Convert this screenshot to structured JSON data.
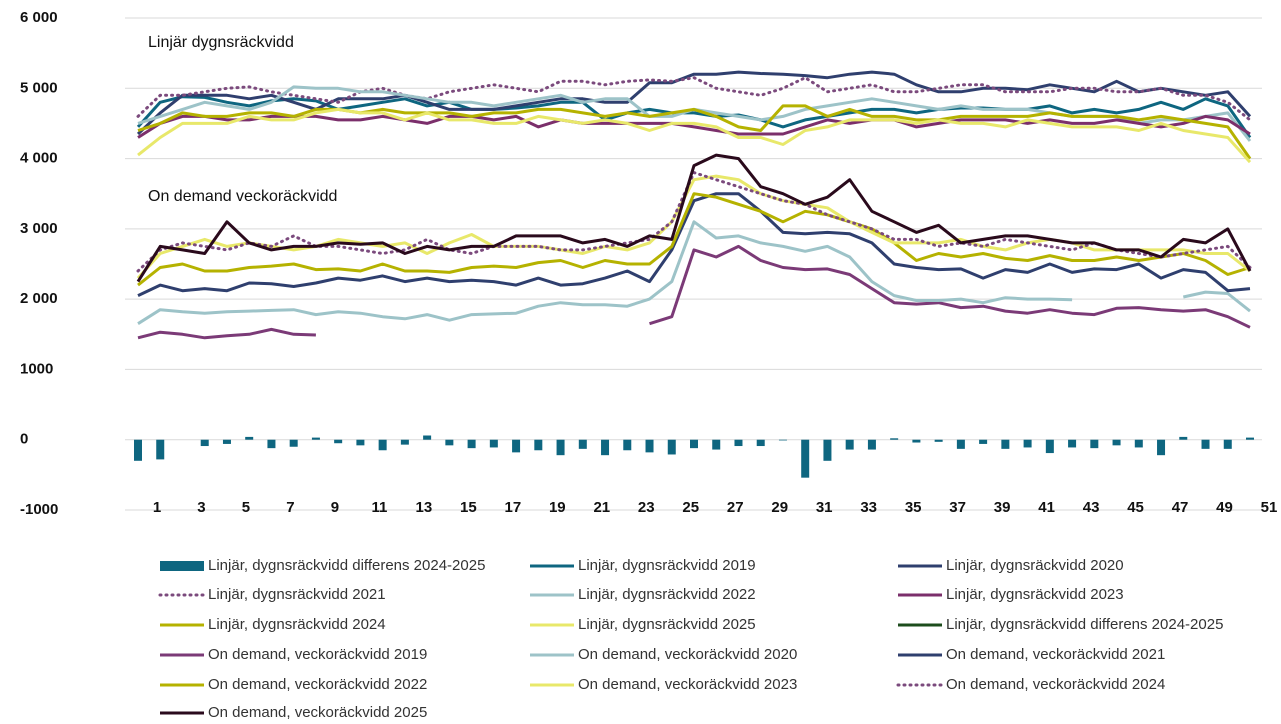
{
  "chart_data": {
    "type": "line",
    "annotations": [
      "Linjär dygnsräckvidd",
      "On demand veckoräckvidd"
    ],
    "categories": [
      1,
      null,
      3,
      null,
      5,
      null,
      7,
      null,
      9,
      null,
      11,
      null,
      13,
      null,
      15,
      null,
      17,
      null,
      19,
      null,
      21,
      null,
      23,
      null,
      25,
      null,
      27,
      null,
      29,
      null,
      31,
      null,
      33,
      null,
      35,
      null,
      37,
      null,
      39,
      null,
      41,
      null,
      43,
      null,
      45,
      null,
      47,
      null,
      49,
      null,
      51
    ],
    "ylim": [
      -1000,
      6000
    ],
    "yticks": [
      {
        "value": 6000,
        "label": "6 000"
      },
      {
        "value": 5000,
        "label": "5 000"
      },
      {
        "value": 4000,
        "label": "4 000"
      },
      {
        "value": 3000,
        "label": "3 000"
      },
      {
        "value": 2000,
        "label": "2 000"
      },
      1000,
      0,
      -1000
    ],
    "grid": true,
    "series": [
      {
        "name": "Linjär, dygnsräckvidd differens 2024-2025",
        "type": "bar",
        "color": "#0e6680",
        "values": [
          -300,
          -280,
          0,
          -90,
          -60,
          40,
          -120,
          -100,
          30,
          -50,
          -80,
          -150,
          -70,
          60,
          -80,
          -120,
          -110,
          -180,
          -150,
          -220,
          -130,
          -220,
          -150,
          -180,
          -210,
          -120,
          -140,
          -90,
          -90,
          -10,
          -540,
          -300,
          -140,
          -140,
          20,
          -40,
          -30,
          -130,
          -60,
          -130,
          -110,
          -190,
          -110,
          -120,
          -80,
          -110,
          -220,
          40,
          -130,
          -130,
          30
        ]
      },
      {
        "name": "Linjär, dygnsräckvidd 2019",
        "color": "#0e6680",
        "values": [
          4450,
          4800,
          4880,
          4870,
          4800,
          4750,
          4820,
          4850,
          4820,
          4700,
          4750,
          4800,
          4850,
          4750,
          4800,
          4700,
          4700,
          4720,
          4750,
          4800,
          4800,
          4550,
          4650,
          4700,
          4650,
          4650,
          4600,
          4620,
          4550,
          4450,
          4550,
          4600,
          4650,
          4700,
          4700,
          4650,
          4700,
          4720,
          4720,
          4700,
          4700,
          4750,
          4650,
          4700,
          4650,
          4700,
          4800,
          4700,
          4850,
          4750,
          4300
        ]
      },
      {
        "name": "Linjär, dygnsräckvidd 2020",
        "color": "#2f3f6e",
        "values": [
          4350,
          4650,
          4900,
          4900,
          4900,
          4850,
          4900,
          4800,
          4700,
          4850,
          4850,
          4850,
          4900,
          4800,
          4700,
          4700,
          4700,
          4750,
          4800,
          4850,
          4850,
          4800,
          4800,
          5080,
          5080,
          5200,
          5200,
          5230,
          5210,
          5200,
          5180,
          5150,
          5200,
          5230,
          5200,
          5050,
          4950,
          4950,
          5000,
          5000,
          4980,
          5050,
          5000,
          4950,
          5100,
          4950,
          5000,
          4950,
          4900,
          4950,
          4600
        ]
      },
      {
        "name": "Linjär, dygnsräckvidd 2021",
        "color": "#7b4a7d",
        "dotted": true,
        "values": [
          4600,
          4900,
          4900,
          4950,
          5000,
          5020,
          4950,
          4900,
          4850,
          4800,
          4950,
          5000,
          4900,
          4850,
          4950,
          5000,
          5050,
          5000,
          4950,
          5100,
          5100,
          5050,
          5100,
          5120,
          5100,
          5150,
          5000,
          4950,
          4900,
          5000,
          5150,
          4950,
          5000,
          5050,
          4950,
          4950,
          5000,
          5050,
          5050,
          4950,
          4950,
          4950,
          5000,
          5000,
          4950,
          4950,
          5000,
          4900,
          4900,
          4800,
          4550
        ]
      },
      {
        "name": "Linjär, dygnsräckvidd 2022",
        "color": "#9dc3c8",
        "values": [
          4500,
          4600,
          4700,
          4800,
          4750,
          4700,
          4800,
          5020,
          5000,
          5000,
          4950,
          4950,
          4900,
          4850,
          4800,
          4800,
          4750,
          4800,
          4850,
          4900,
          4800,
          4850,
          4850,
          4600,
          4600,
          4700,
          4650,
          4600,
          4550,
          4600,
          4700,
          4750,
          4800,
          4850,
          4800,
          4750,
          4700,
          4750,
          4700,
          4700,
          4700,
          4650,
          4600,
          4600,
          4600,
          4500,
          4550,
          4550,
          4600,
          4650,
          4250
        ]
      },
      {
        "name": "Linjär, dygnsräckvidd 2023",
        "color": "#7b2f6b",
        "values": [
          4300,
          4500,
          4600,
          4600,
          4550,
          4550,
          4600,
          4600,
          4600,
          4550,
          4550,
          4600,
          4550,
          4500,
          4600,
          4600,
          4550,
          4600,
          4450,
          4550,
          4500,
          4500,
          4500,
          4500,
          4500,
          4450,
          4400,
          4350,
          4350,
          4350,
          4450,
          4550,
          4500,
          4550,
          4550,
          4450,
          4500,
          4550,
          4550,
          4550,
          4500,
          4550,
          4500,
          4500,
          4550,
          4500,
          4450,
          4500,
          4600,
          4550,
          4350
        ]
      },
      {
        "name": "Linjär, dygnsräckvidd 2024",
        "color": "#b5b200",
        "values": [
          4400,
          4500,
          4650,
          4600,
          4600,
          4650,
          4650,
          4600,
          4700,
          4700,
          4650,
          4700,
          4650,
          4650,
          4650,
          4600,
          4650,
          4650,
          4700,
          4700,
          4650,
          4600,
          4650,
          4600,
          4650,
          4700,
          4600,
          4450,
          4400,
          4750,
          4750,
          4600,
          4700,
          4600,
          4600,
          4550,
          4550,
          4600,
          4600,
          4600,
          4600,
          4650,
          4600,
          4600,
          4600,
          4550,
          4600,
          4550,
          4500,
          4450,
          4000
        ]
      },
      {
        "name": "Linjär, dygnsräckvidd 2025",
        "color": "#e8e86a",
        "values": [
          4050,
          4300,
          4500,
          4500,
          4500,
          4600,
          4550,
          4550,
          4650,
          4700,
          4650,
          4650,
          4550,
          4650,
          4550,
          4550,
          4500,
          4500,
          4600,
          4550,
          4500,
          4550,
          4500,
          4400,
          4500,
          4500,
          4450,
          4300,
          4300,
          4200,
          4400,
          4450,
          4550,
          4550,
          4550,
          4500,
          4550,
          4500,
          4500,
          4450,
          4550,
          4500,
          4450,
          4450,
          4450,
          4400,
          4500,
          4400,
          4350,
          4300,
          3950
        ]
      },
      {
        "name": "Linjär, dygnsräckvidd differens 2024-2025",
        "color": "#1d4d1d",
        "values": [
          null,
          null,
          null,
          null,
          null,
          null,
          null,
          null,
          null,
          null,
          null,
          null,
          null,
          null,
          null,
          null,
          null,
          null,
          null,
          null,
          null,
          null,
          null,
          null,
          null,
          null,
          null,
          null,
          null,
          null,
          null,
          null,
          null,
          null,
          null,
          null,
          null,
          null,
          null,
          null,
          null,
          null,
          null,
          null,
          null,
          null,
          null,
          null,
          null,
          null,
          null
        ]
      },
      {
        "name": "On demand, veckoräckvidd 2019",
        "color": "#7b3a77",
        "values": [
          1450,
          1530,
          1500,
          1450,
          1480,
          1500,
          1570,
          1500,
          1490,
          null,
          null,
          null,
          null,
          null,
          null,
          null,
          null,
          null,
          null,
          null,
          null,
          null,
          null,
          1650,
          1750,
          2700,
          2600,
          2750,
          2550,
          2450,
          2420,
          2430,
          2350,
          2150,
          1950,
          1930,
          1950,
          1880,
          1900,
          1830,
          1800,
          1850,
          1800,
          1780,
          1870,
          1880,
          1850,
          1830,
          1850,
          1750,
          1600
        ]
      },
      {
        "name": "On demand, veckoräckvidd 2020",
        "color": "#9dc3c8",
        "values": [
          1650,
          1850,
          1820,
          1800,
          1820,
          1830,
          1840,
          1850,
          1780,
          1820,
          1800,
          1750,
          1720,
          1780,
          1700,
          1780,
          1790,
          1800,
          1900,
          1950,
          1920,
          1920,
          1900,
          2000,
          2250,
          3100,
          2870,
          2900,
          2800,
          2750,
          2680,
          2750,
          2600,
          2250,
          2050,
          1980,
          1980,
          2000,
          1950,
          2020,
          2000,
          2000,
          1990,
          null,
          null,
          null,
          null,
          2030,
          2100,
          2080,
          1830
        ]
      },
      {
        "name": "On demand, veckoräckvidd 2021",
        "color": "#2f3f6e",
        "values": [
          2050,
          2200,
          2120,
          2150,
          2120,
          2230,
          2220,
          2180,
          2230,
          2300,
          2270,
          2330,
          2250,
          2300,
          2250,
          2270,
          2250,
          2200,
          2300,
          2200,
          2220,
          2300,
          2400,
          2250,
          2700,
          3400,
          3500,
          3500,
          3250,
          2950,
          2930,
          2950,
          2930,
          2800,
          2500,
          2450,
          2420,
          2430,
          2300,
          2420,
          2380,
          2500,
          2380,
          2430,
          2420,
          2500,
          2300,
          2420,
          2380,
          2120,
          2150
        ]
      },
      {
        "name": "On demand, veckoräckvidd 2022",
        "color": "#b5b200",
        "values": [
          2200,
          2450,
          2500,
          2400,
          2400,
          2450,
          2470,
          2500,
          2420,
          2430,
          2400,
          2500,
          2400,
          2400,
          2380,
          2450,
          2470,
          2450,
          2520,
          2550,
          2450,
          2550,
          2500,
          2500,
          2750,
          3500,
          3450,
          3350,
          3250,
          3100,
          3250,
          3200,
          3100,
          3000,
          2800,
          2550,
          2650,
          2600,
          2650,
          2580,
          2550,
          2620,
          2550,
          2550,
          2600,
          2550,
          2600,
          2650,
          2550,
          2350,
          2450
        ]
      },
      {
        "name": "On demand, veckoräckvidd 2023",
        "color": "#e8e86a",
        "values": [
          2300,
          2650,
          2750,
          2850,
          2750,
          2800,
          2750,
          2700,
          2750,
          2850,
          2800,
          2750,
          2800,
          2650,
          2800,
          2920,
          2750,
          2750,
          2750,
          2700,
          2650,
          2750,
          2700,
          2800,
          3100,
          3700,
          3750,
          3700,
          3500,
          3400,
          3350,
          3300,
          3100,
          2950,
          2800,
          2800,
          2800,
          2850,
          2750,
          2700,
          2800,
          2850,
          2800,
          2700,
          2700,
          2700,
          2700,
          2700,
          2650,
          2650,
          2400
        ]
      },
      {
        "name": "On demand, veckoräckvidd 2024",
        "color": "#7b4a7d",
        "dotted": true,
        "values": [
          2400,
          2700,
          2800,
          2750,
          2700,
          2800,
          2750,
          2900,
          2750,
          2750,
          2700,
          2650,
          2700,
          2850,
          2700,
          2650,
          2750,
          2750,
          2750,
          2700,
          2700,
          2750,
          2800,
          2850,
          3100,
          3800,
          3700,
          3600,
          3500,
          3400,
          3350,
          3200,
          3100,
          3000,
          2850,
          2850,
          2750,
          2800,
          2750,
          2850,
          2800,
          2750,
          2700,
          2800,
          2700,
          2650,
          2600,
          2650,
          2700,
          2750,
          2450
        ]
      },
      {
        "name": "On demand, veckoräckvidd 2025",
        "color": "#2a0a1c",
        "values": [
          2250,
          2750,
          2700,
          2650,
          3100,
          2800,
          2700,
          2750,
          2750,
          2800,
          2780,
          2800,
          2650,
          2750,
          2700,
          2750,
          2750,
          2900,
          2900,
          2900,
          2800,
          2850,
          2750,
          2900,
          2850,
          3900,
          4050,
          4000,
          3600,
          3500,
          3350,
          3450,
          3700,
          3250,
          3100,
          2950,
          3050,
          2800,
          2850,
          2900,
          2900,
          2850,
          2800,
          2800,
          2700,
          2700,
          2600,
          2850,
          2800,
          3000,
          2400
        ]
      }
    ]
  }
}
